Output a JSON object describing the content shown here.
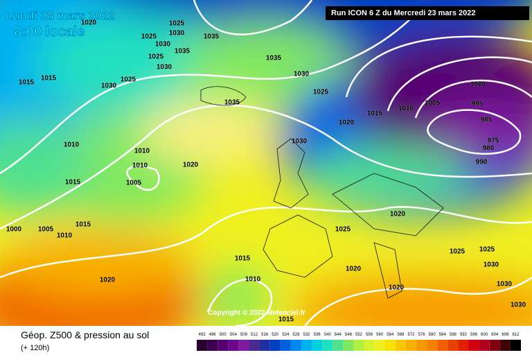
{
  "header": {
    "date": "Lundi 28 mars 2022",
    "time": "8:00 locale",
    "run": "Run ICON 6 Z du Mercredi 23 mars 2022",
    "copyright": "Copyright © 2022 Meteociel.fr"
  },
  "footer": {
    "title": "Géop. Z500 & pression au sol",
    "lead": "(+ 120h)"
  },
  "isobar_labels": [
    "1020",
    "1025",
    "1030",
    "1035",
    "1025",
    "1030",
    "1035",
    "1025",
    "1030",
    "1015",
    "1015",
    "1030",
    "1025",
    "1035",
    "1030",
    "1025",
    "1035",
    "1015",
    "1010",
    "1005",
    "1000",
    "995",
    "985",
    "975",
    "980",
    "990",
    "1020",
    "1030",
    "1010",
    "1010",
    "1010",
    "1020",
    "1005",
    "1015",
    "1015",
    "1000",
    "1005",
    "1010",
    "1020",
    "1025",
    "1025",
    "1025",
    "1030",
    "1030",
    "1015",
    "1010",
    "1020",
    "1020",
    "1020",
    "1015",
    "1030"
  ],
  "scale": {
    "labels": [
      "492",
      "496",
      "500",
      "504",
      "508",
      "512",
      "516",
      "520",
      "524",
      "528",
      "532",
      "536",
      "540",
      "544",
      "548",
      "552",
      "556",
      "560",
      "564",
      "568",
      "572",
      "576",
      "580",
      "584",
      "588",
      "592",
      "596",
      "600",
      "604",
      "608",
      "612"
    ],
    "colors": [
      "#2a0030",
      "#3d0050",
      "#55006e",
      "#6a0a8a",
      "#7e1aa0",
      "#4a2a90",
      "#2030a0",
      "#0040c0",
      "#0060e0",
      "#0088f0",
      "#00b0f0",
      "#00d0e0",
      "#20e0c0",
      "#50e090",
      "#80e860",
      "#b0f040",
      "#d8f030",
      "#f0f020",
      "#f8e000",
      "#f8c800",
      "#f8b000",
      "#f89800",
      "#f88000",
      "#f06000",
      "#e84000",
      "#e02000",
      "#d00010",
      "#b00020",
      "#800010",
      "#400008",
      "#000000"
    ]
  }
}
